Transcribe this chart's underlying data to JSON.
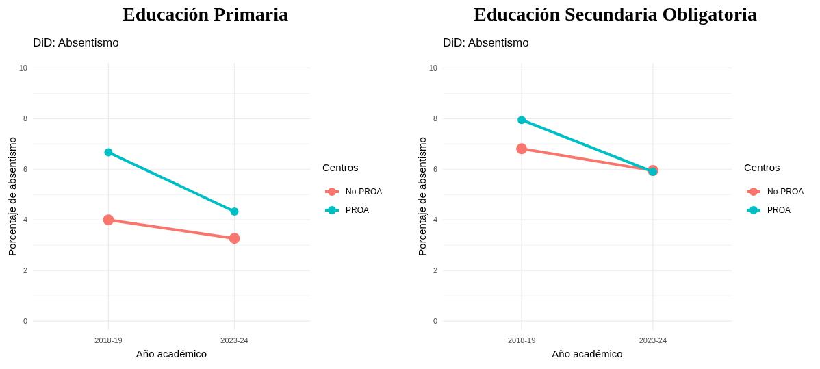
{
  "chart_data": [
    {
      "type": "line",
      "title": "Educación Primaria",
      "subtitle": "DiD: Absentismo",
      "xlabel": "Año académico",
      "ylabel": "Porcentaje de absentismo",
      "legend_title": "Centros",
      "categories": [
        "2018-19",
        "2023-24"
      ],
      "series": [
        {
          "name": "No-PROA",
          "color": "#f8766d",
          "values": [
            4.0,
            3.27
          ]
        },
        {
          "name": "PROA",
          "color": "#00bfc4",
          "values": [
            6.67,
            4.33
          ]
        }
      ],
      "ylim": [
        -0.35,
        10.2
      ],
      "yticks": [
        0,
        {
          "value": 1,
          "label": null
        },
        2,
        {
          "value": 3,
          "label": null
        },
        4,
        {
          "value": 5,
          "label": null
        },
        6,
        {
          "value": 7,
          "label": null
        },
        8,
        {
          "value": 9,
          "label": null
        },
        10
      ],
      "grid": true,
      "legend": "right",
      "marker": "circle",
      "line_style": "solid"
    },
    {
      "type": "line",
      "title": "Educación Secundaria Obligatoria",
      "subtitle": "DiD: Absentismo",
      "xlabel": "Año académico",
      "ylabel": "Porcentaje de absentismo",
      "legend_title": "Centros",
      "categories": [
        "2018-19",
        "2023-24"
      ],
      "series": [
        {
          "name": "No-PROA",
          "color": "#f8766d",
          "values": [
            6.81,
            5.95
          ]
        },
        {
          "name": "PROA",
          "color": "#00bfc4",
          "values": [
            7.95,
            5.9
          ]
        }
      ],
      "ylim": [
        -0.35,
        10.2
      ],
      "yticks": [
        0,
        {
          "value": 1,
          "label": null
        },
        2,
        {
          "value": 3,
          "label": null
        },
        4,
        {
          "value": 5,
          "label": null
        },
        6,
        {
          "value": 7,
          "label": null
        },
        8,
        {
          "value": 9,
          "label": null
        },
        10
      ],
      "grid": true,
      "legend": "right",
      "marker": "circle",
      "line_style": "solid"
    }
  ]
}
